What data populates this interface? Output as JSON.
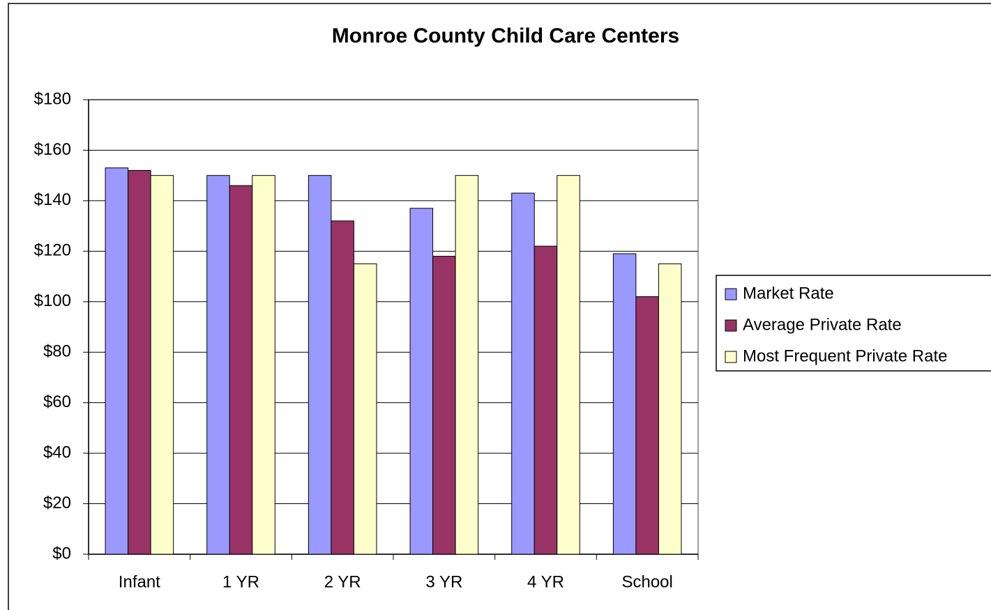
{
  "chart_data": {
    "type": "bar",
    "title": "Monroe County Child Care Centers",
    "categories": [
      "Infant",
      "1 YR",
      "2 YR",
      "3 YR",
      "4 YR",
      "School"
    ],
    "series": [
      {
        "name": "Market Rate",
        "color": "#9999ff",
        "values": [
          153,
          150,
          150,
          137,
          143,
          119
        ]
      },
      {
        "name": "Average Private Rate",
        "color": "#993366",
        "values": [
          152,
          146,
          132,
          118,
          122,
          102
        ]
      },
      {
        "name": "Most Frequent Private Rate",
        "color": "#ffffcc",
        "values": [
          150,
          150,
          115,
          150,
          150,
          115
        ]
      }
    ],
    "ylim": [
      0,
      180
    ],
    "yticks": [
      {
        "value": 0,
        "label": "$0"
      },
      {
        "value": 20,
        "label": "$20"
      },
      {
        "value": 40,
        "label": "$40"
      },
      {
        "value": 60,
        "label": "$60"
      },
      {
        "value": 80,
        "label": "$80"
      },
      {
        "value": 100,
        "label": "$100"
      },
      {
        "value": 120,
        "label": "$120"
      },
      {
        "value": 140,
        "label": "$140"
      },
      {
        "value": 160,
        "label": "$160"
      },
      {
        "value": 180,
        "label": "$180"
      }
    ],
    "grid": true,
    "legend": "right"
  }
}
